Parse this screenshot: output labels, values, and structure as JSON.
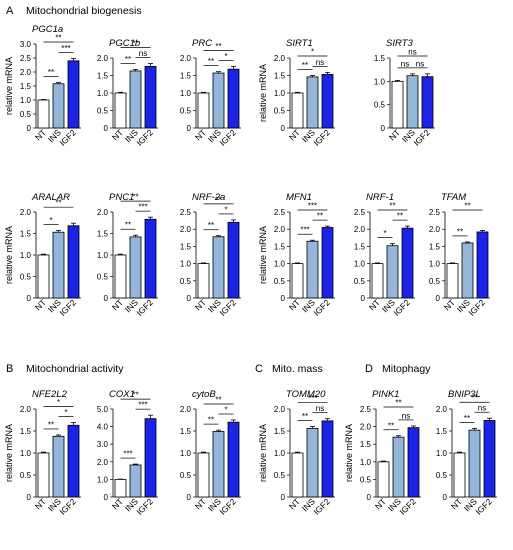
{
  "sections": [
    {
      "letter": "A",
      "title": "Mitochondrial biogenesis"
    },
    {
      "letter": "B",
      "title": "Mitochondrial activity"
    },
    {
      "letter": "C",
      "title": "Mito. mass"
    },
    {
      "letter": "D",
      "title": "Mitophagy"
    }
  ],
  "colors": {
    "NT": "#ffffff",
    "INS": "#94b6d9",
    "IGF2": "#1a23e6",
    "stroke": "#000000"
  },
  "chart_data": [
    {
      "type": "bar",
      "title": "PGC1a",
      "ylabel": "relative mRNA",
      "categories": [
        "NT",
        "INS",
        "IGF2"
      ],
      "values": [
        1.0,
        1.58,
        2.4
      ],
      "errors": [
        0.02,
        0.04,
        0.08
      ],
      "ylim": [
        0,
        3
      ],
      "yticks": [
        "0",
        "0.5",
        "1.0",
        "1.5",
        "2.0",
        "2.5",
        "3.0"
      ],
      "sig": [
        {
          "from": 0,
          "to": 1,
          "label": "**"
        },
        {
          "from": 1,
          "to": 2,
          "label": "***"
        },
        {
          "from": 0,
          "to": 2,
          "label": "**"
        }
      ]
    },
    {
      "type": "bar",
      "title": "PGC1b",
      "ylabel": "",
      "categories": [
        "NT",
        "INS",
        "IGF2"
      ],
      "values": [
        1.0,
        1.63,
        1.76
      ],
      "errors": [
        0.02,
        0.04,
        0.08
      ],
      "ylim": [
        0,
        2
      ],
      "yticks": [
        "0",
        "0.5",
        "1.0",
        "1.5",
        "2.0"
      ],
      "sig": [
        {
          "from": 0,
          "to": 1,
          "label": "**"
        },
        {
          "from": 1,
          "to": 2,
          "label": "ns"
        },
        {
          "from": 0,
          "to": 2,
          "label": "**"
        }
      ]
    },
    {
      "type": "bar",
      "title": "PRC",
      "ylabel": "",
      "categories": [
        "NT",
        "INS",
        "IGF2"
      ],
      "values": [
        1.0,
        1.57,
        1.68
      ],
      "errors": [
        0.02,
        0.04,
        0.08
      ],
      "ylim": [
        0,
        2
      ],
      "yticks": [
        "0",
        "0.5",
        "1.0",
        "1.5",
        "2.0"
      ],
      "sig": [
        {
          "from": 0,
          "to": 1,
          "label": "**"
        },
        {
          "from": 1,
          "to": 2,
          "label": "*"
        },
        {
          "from": 0,
          "to": 2,
          "label": "**"
        }
      ]
    },
    {
      "type": "bar",
      "title": "SIRT1",
      "ylabel": "relative mRNA",
      "categories": [
        "NT",
        "INS",
        "IGF2"
      ],
      "values": [
        1.0,
        1.46,
        1.53
      ],
      "errors": [
        0.02,
        0.04,
        0.06
      ],
      "ylim": [
        0,
        2
      ],
      "yticks": [
        "0",
        "0.5",
        "1.0",
        "1.5",
        "2.0"
      ],
      "sig": [
        {
          "from": 0,
          "to": 1,
          "label": "**"
        },
        {
          "from": 1,
          "to": 2,
          "label": "ns"
        },
        {
          "from": 0,
          "to": 2,
          "label": "*"
        }
      ]
    },
    {
      "type": "bar",
      "title": "SIRT3",
      "ylabel": "",
      "categories": [
        "NT",
        "INS",
        "IGF2"
      ],
      "values": [
        1.0,
        1.12,
        1.1
      ],
      "errors": [
        0.02,
        0.04,
        0.06
      ],
      "ylim": [
        0,
        1.5
      ],
      "yticks": [
        "0",
        "0.5",
        "1.0",
        "1.5"
      ],
      "sig": [
        {
          "from": 0,
          "to": 1,
          "label": "ns"
        },
        {
          "from": 1,
          "to": 2,
          "label": "ns"
        },
        {
          "from": 0,
          "to": 2,
          "label": "ns"
        }
      ]
    },
    {
      "type": "bar",
      "title": "ARALAR",
      "ylabel": "relative mRNA",
      "categories": [
        "NT",
        "INS",
        "IGF2"
      ],
      "values": [
        1.0,
        1.53,
        1.68
      ],
      "errors": [
        0.02,
        0.04,
        0.06
      ],
      "ylim": [
        0,
        2
      ],
      "yticks": [
        "0",
        "0.5",
        "1.0",
        "1.5",
        "2.0"
      ],
      "sig": [
        {
          "from": 0,
          "to": 1,
          "label": "*"
        },
        {
          "from": 0,
          "to": 2,
          "label": "**"
        }
      ]
    },
    {
      "type": "bar",
      "title": "PNC1",
      "ylabel": "",
      "categories": [
        "NT",
        "INS",
        "IGF2"
      ],
      "values": [
        1.0,
        1.42,
        1.83
      ],
      "errors": [
        0.02,
        0.04,
        0.05
      ],
      "ylim": [
        0,
        2
      ],
      "yticks": [
        "0",
        "0.5",
        "1.0",
        "1.5",
        "2.0"
      ],
      "sig": [
        {
          "from": 0,
          "to": 1,
          "label": "**"
        },
        {
          "from": 1,
          "to": 2,
          "label": "***"
        },
        {
          "from": 0,
          "to": 2,
          "label": "**"
        }
      ]
    },
    {
      "type": "bar",
      "title": "NRF-2a",
      "ylabel": "",
      "categories": [
        "NT",
        "INS",
        "IGF2"
      ],
      "values": [
        1.0,
        1.78,
        2.2
      ],
      "errors": [
        0.02,
        0.03,
        0.07
      ],
      "ylim": [
        0,
        2.5
      ],
      "yticks": [
        "0",
        "0.5",
        "1.0",
        "1.5",
        "2.0",
        "2.5"
      ],
      "sig": [
        {
          "from": 0,
          "to": 1,
          "label": "**"
        },
        {
          "from": 1,
          "to": 2,
          "label": "*"
        },
        {
          "from": 0,
          "to": 2,
          "label": "**"
        }
      ]
    },
    {
      "type": "bar",
      "title": "MFN1",
      "ylabel": "relative mRNA",
      "categories": [
        "NT",
        "INS",
        "IGF2"
      ],
      "values": [
        1.0,
        1.65,
        2.05
      ],
      "errors": [
        0.02,
        0.03,
        0.04
      ],
      "ylim": [
        0,
        2.5
      ],
      "yticks": [
        "0",
        "0.5",
        "1.0",
        "1.5",
        "2.0",
        "2.5"
      ],
      "sig": [
        {
          "from": 0,
          "to": 1,
          "label": "***"
        },
        {
          "from": 1,
          "to": 2,
          "label": "**"
        },
        {
          "from": 0,
          "to": 2,
          "label": "***"
        }
      ]
    },
    {
      "type": "bar",
      "title": "NRF-1",
      "ylabel": "",
      "categories": [
        "NT",
        "INS",
        "IGF2"
      ],
      "values": [
        1.0,
        1.52,
        2.03
      ],
      "errors": [
        0.02,
        0.06,
        0.06
      ],
      "ylim": [
        0,
        2.5
      ],
      "yticks": [
        "0",
        "0.5",
        "1.0",
        "1.5",
        "2.0",
        "2.5"
      ],
      "sig": [
        {
          "from": 0,
          "to": 1,
          "label": "*"
        },
        {
          "from": 1,
          "to": 2,
          "label": "**"
        },
        {
          "from": 0,
          "to": 2,
          "label": "**"
        }
      ]
    },
    {
      "type": "bar",
      "title": "TFAM",
      "ylabel": "",
      "categories": [
        "NT",
        "INS",
        "IGF2"
      ],
      "values": [
        1.0,
        1.6,
        1.92
      ],
      "errors": [
        0.02,
        0.03,
        0.04
      ],
      "ylim": [
        0,
        2.5
      ],
      "yticks": [
        "0",
        "0.5",
        "1.0",
        "1.5",
        "2.0",
        "2.5"
      ],
      "sig": [
        {
          "from": 0,
          "to": 1,
          "label": "**"
        },
        {
          "from": 0,
          "to": 2,
          "label": "**"
        }
      ]
    },
    {
      "type": "bar",
      "title": "NFE2L2",
      "ylabel": "relative mRNA",
      "categories": [
        "NT",
        "INS",
        "IGF2"
      ],
      "values": [
        1.0,
        1.38,
        1.63
      ],
      "errors": [
        0.02,
        0.03,
        0.06
      ],
      "ylim": [
        0,
        2
      ],
      "yticks": [
        "0",
        "0.5",
        "1.0",
        "1.5",
        "2.0"
      ],
      "sig": [
        {
          "from": 0,
          "to": 1,
          "label": "**"
        },
        {
          "from": 1,
          "to": 2,
          "label": "*"
        },
        {
          "from": 0,
          "to": 2,
          "label": "*"
        }
      ]
    },
    {
      "type": "bar",
      "title": "COX1",
      "ylabel": "",
      "categories": [
        "NT",
        "INS",
        "IGF2"
      ],
      "values": [
        1.0,
        1.82,
        4.45
      ],
      "errors": [
        0.02,
        0.05,
        0.2
      ],
      "ylim": [
        0,
        5
      ],
      "yticks": [
        "0",
        "1.0",
        "2.0",
        "3.0",
        "4.0",
        "5.0"
      ],
      "sig": [
        {
          "from": 0,
          "to": 1,
          "label": "***"
        },
        {
          "from": 1,
          "to": 2,
          "label": "***"
        },
        {
          "from": 0,
          "to": 2,
          "label": "**"
        }
      ]
    },
    {
      "type": "bar",
      "title": "cytoB",
      "ylabel": "",
      "categories": [
        "NT",
        "INS",
        "IGF2"
      ],
      "values": [
        1.0,
        1.49,
        1.7
      ],
      "errors": [
        0.02,
        0.03,
        0.05
      ],
      "ylim": [
        0,
        2
      ],
      "yticks": [
        "0",
        "0.5",
        "1.0",
        "1.5",
        "2.0"
      ],
      "sig": [
        {
          "from": 0,
          "to": 1,
          "label": "**"
        },
        {
          "from": 1,
          "to": 2,
          "label": "*"
        },
        {
          "from": 0,
          "to": 2,
          "label": "**"
        }
      ]
    },
    {
      "type": "bar",
      "title": "TOMM20",
      "ylabel": "relative mRNA",
      "categories": [
        "NT",
        "INS",
        "IGF2"
      ],
      "values": [
        1.0,
        1.56,
        1.73
      ],
      "errors": [
        0.02,
        0.04,
        0.05
      ],
      "ylim": [
        0,
        2
      ],
      "yticks": [
        "0",
        "0.5",
        "1.0",
        "1.5",
        "2.0"
      ],
      "sig": [
        {
          "from": 0,
          "to": 1,
          "label": "**"
        },
        {
          "from": 1,
          "to": 2,
          "label": "ns"
        },
        {
          "from": 0,
          "to": 2,
          "label": "***"
        }
      ]
    },
    {
      "type": "bar",
      "title": "PINK1",
      "ylabel": "relative mRNA",
      "categories": [
        "NT",
        "INS",
        "IGF2"
      ],
      "values": [
        1.0,
        1.7,
        1.97
      ],
      "errors": [
        0.02,
        0.04,
        0.05
      ],
      "ylim": [
        0,
        2.5
      ],
      "yticks": [
        "0",
        "0.5",
        "1.0",
        "1.5",
        "2.0",
        "2.5"
      ],
      "sig": [
        {
          "from": 0,
          "to": 1,
          "label": "**"
        },
        {
          "from": 1,
          "to": 2,
          "label": "ns"
        },
        {
          "from": 0,
          "to": 2,
          "label": "**"
        }
      ]
    },
    {
      "type": "bar",
      "title": "BNIP3L",
      "ylabel": "",
      "categories": [
        "NT",
        "INS",
        "IGF2"
      ],
      "values": [
        1.0,
        1.52,
        1.74
      ],
      "errors": [
        0.02,
        0.04,
        0.05
      ],
      "ylim": [
        0,
        2
      ],
      "yticks": [
        "0",
        "0.5",
        "1.0",
        "1.5",
        "2.0"
      ],
      "sig": [
        {
          "from": 0,
          "to": 1,
          "label": "**"
        },
        {
          "from": 1,
          "to": 2,
          "label": "ns"
        },
        {
          "from": 0,
          "to": 2,
          "label": "**"
        }
      ]
    }
  ]
}
